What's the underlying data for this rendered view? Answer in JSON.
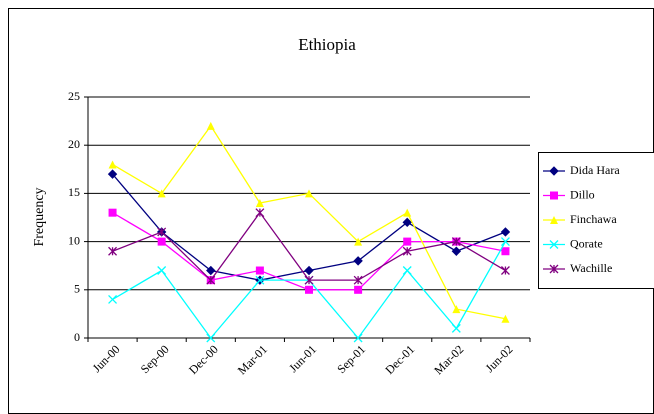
{
  "chart_data": {
    "type": "line",
    "title": "Ethiopia",
    "y_label": "Frequency",
    "categories": [
      "Jun-00",
      "Sep-00",
      "Dec-00",
      "Mar-01",
      "Jun-01",
      "Sep-01",
      "Dec-01",
      "Mar-02",
      "Jun-02"
    ],
    "series": [
      {
        "name": "Dida Hara",
        "color": "#000080",
        "marker": "diamond",
        "values": [
          17,
          11,
          7,
          6,
          7,
          8,
          12,
          9,
          11
        ]
      },
      {
        "name": "Dillo",
        "color": "#ff00ff",
        "marker": "square",
        "values": [
          13,
          10,
          6,
          7,
          5,
          5,
          10,
          10,
          9
        ]
      },
      {
        "name": "Finchawa",
        "color": "#ffff00",
        "marker": "triangle",
        "values": [
          18,
          15,
          22,
          14,
          15,
          10,
          13,
          3,
          2
        ]
      },
      {
        "name": "Qorate",
        "color": "#00ffff",
        "marker": "x",
        "values": [
          4,
          7,
          0,
          6,
          6,
          0,
          7,
          1,
          10
        ]
      },
      {
        "name": "Wachille",
        "color": "#800080",
        "marker": "star",
        "values": [
          9,
          11,
          6,
          13,
          6,
          6,
          9,
          10,
          7
        ]
      }
    ],
    "ylim": [
      0,
      25
    ],
    "yticks": [
      0,
      5,
      10,
      15,
      20,
      25
    ],
    "grid": true,
    "legend": "right"
  }
}
